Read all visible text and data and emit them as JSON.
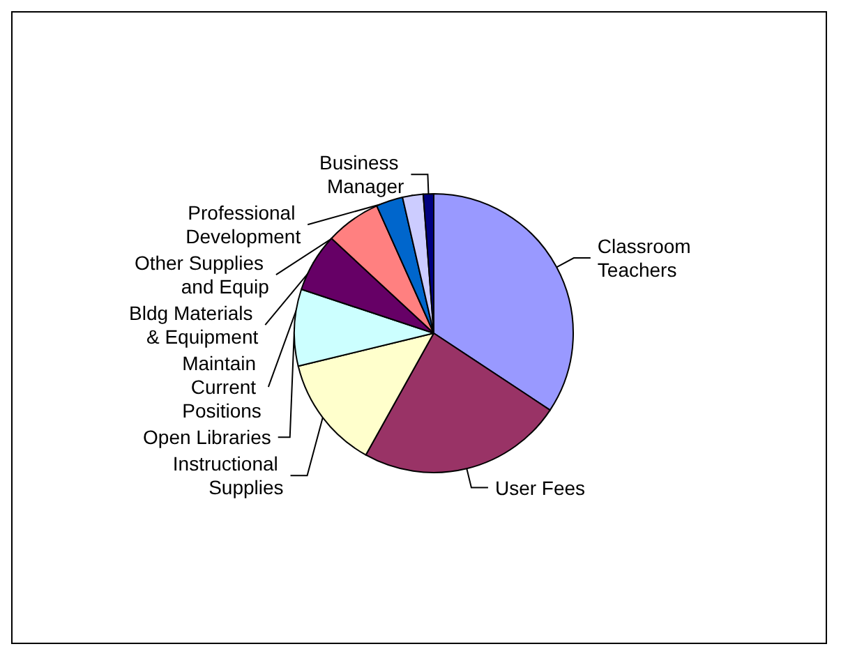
{
  "chart_data": {
    "type": "pie",
    "categories": [
      "Classroom Teachers",
      "User Fees",
      "Instructional Supplies",
      "Open Libraries",
      "Maintain Current Positions",
      "Bldg Materials & Equipment",
      "Other Supplies and Equip",
      "Professional Development",
      "Business Manager"
    ],
    "values": [
      34.3,
      23.8,
      13.1,
      8.9,
      6.8,
      6.4,
      3.1,
      2.4,
      1.2
    ],
    "colors": [
      "#9999ff",
      "#993366",
      "#ffffcc",
      "#ccffff",
      "#660066",
      "#ff8080",
      "#0066cc",
      "#ccccff",
      "#000080"
    ],
    "legend": false
  }
}
